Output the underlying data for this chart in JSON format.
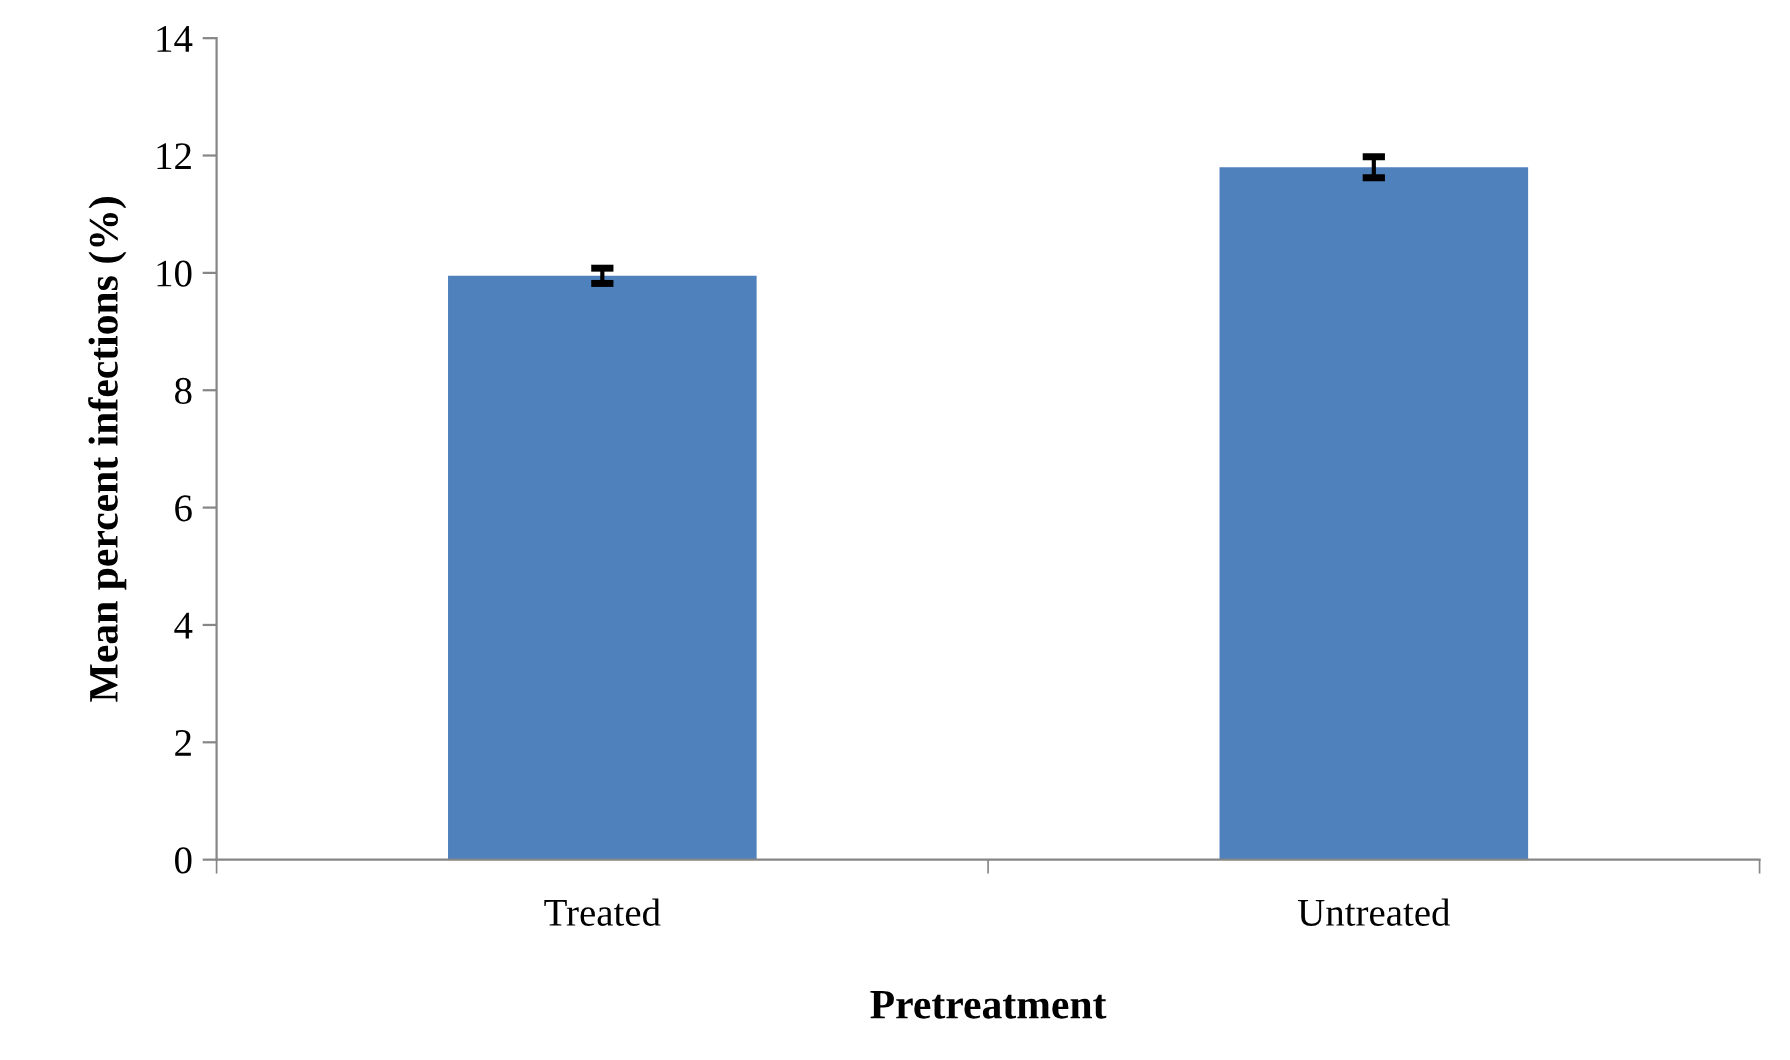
{
  "chart_data": {
    "type": "bar",
    "xlabel": "Pretreatment",
    "ylabel": "Mean percent infections (%)",
    "categories": [
      "Treated",
      "Untreated"
    ],
    "values": [
      9.95,
      11.8
    ],
    "errors": [
      0.13,
      0.18
    ],
    "color": "#4f81bd",
    "ylim": [
      0,
      14
    ],
    "yticks": [
      0,
      2,
      4,
      6,
      8,
      10,
      12,
      14
    ],
    "grid": false,
    "legend": false
  }
}
